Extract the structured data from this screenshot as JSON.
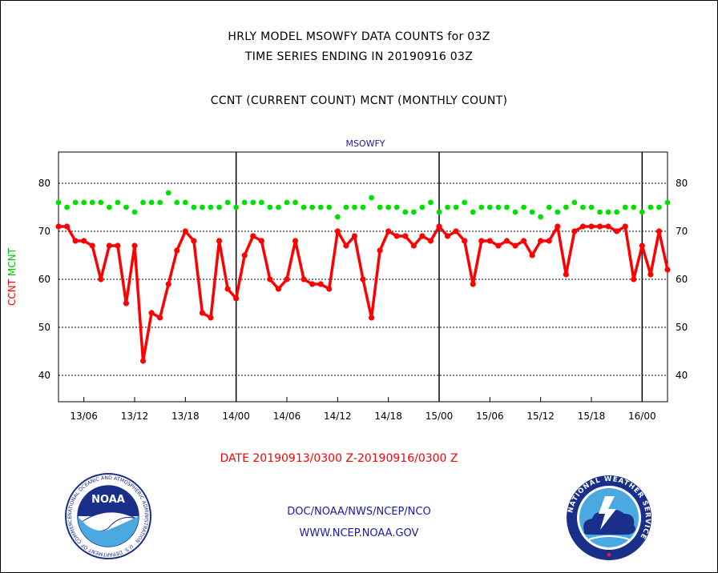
{
  "title_line1": "HRLY MODEL MSOWFY DATA COUNTS for 03Z",
  "title_line2": "TIME SERIES ENDING IN 20190916 03Z",
  "subtitle": "CCNT (CURRENT COUNT) MCNT (MONTHLY COUNT)",
  "date_range": "DATE 20190913/0300 Z-20190916/0300 Z",
  "footer_line1": "DOC/NOAA/NWS/NCEP/NCO",
  "footer_line2": "WWW.NCEP.NOAA.GOV",
  "logos": {
    "left": {
      "text": "NOAA",
      "ring_text": "NATIONAL OCEANIC AND ATMOSPHERIC ADMINISTRATION · U.S. DEPARTMENT OF COMMERCE"
    },
    "right": {
      "ring_text": "NATIONAL WEATHER SERVICE"
    }
  },
  "chart_data": {
    "type": "line",
    "series_label": "MSOWFY",
    "ylabel_ccnt": "CCNT",
    "ylabel_mcnt": "MCNT",
    "ylim": [
      34.5,
      86.5
    ],
    "yticks": [
      40,
      50,
      60,
      70,
      80
    ],
    "x_tick_labels": [
      "13/06",
      "13/12",
      "13/18",
      "14/00",
      "14/06",
      "14/12",
      "14/18",
      "15/00",
      "15/06",
      "15/12",
      "15/18",
      "16/00"
    ],
    "x_tick_hours": [
      3,
      9,
      15,
      21,
      27,
      33,
      39,
      45,
      51,
      57,
      63,
      69
    ],
    "day_boundary_hours": [
      21,
      45,
      69
    ],
    "x_range_hours": [
      0,
      72
    ],
    "x_start": "2019-09-13 03Z",
    "grid": true,
    "series": [
      {
        "name": "CCNT",
        "color": "#ff0000",
        "values": [
          71,
          71,
          68,
          68,
          67,
          60,
          67,
          67,
          55,
          67,
          43,
          53,
          52,
          59,
          66,
          70,
          68,
          53,
          52,
          68,
          58,
          56,
          65,
          69,
          68,
          60,
          58,
          60,
          68,
          60,
          59,
          59,
          58,
          70,
          67,
          69,
          60,
          52,
          66,
          70,
          69,
          69,
          67,
          69,
          68,
          71,
          69,
          70,
          68,
          59,
          68,
          68,
          67,
          68,
          67,
          68,
          65,
          68,
          68,
          71,
          61,
          70,
          71,
          71,
          71,
          71,
          70,
          71,
          60,
          67,
          61,
          70,
          62
        ]
      },
      {
        "name": "MCNT",
        "color": "#00e000",
        "values": [
          76,
          75,
          76,
          76,
          76,
          76,
          75,
          76,
          75,
          74,
          76,
          76,
          76,
          78,
          76,
          76,
          75,
          75,
          75,
          75,
          76,
          75,
          76,
          76,
          76,
          75,
          75,
          76,
          76,
          75,
          75,
          75,
          75,
          73,
          75,
          75,
          75,
          77,
          75,
          75,
          75,
          74,
          74,
          75,
          76,
          74,
          75,
          75,
          76,
          74,
          75,
          75,
          75,
          75,
          74,
          75,
          74,
          73,
          75,
          74,
          75,
          76,
          75,
          75,
          74,
          74,
          74,
          75,
          75,
          74,
          75,
          75,
          76
        ]
      }
    ]
  }
}
